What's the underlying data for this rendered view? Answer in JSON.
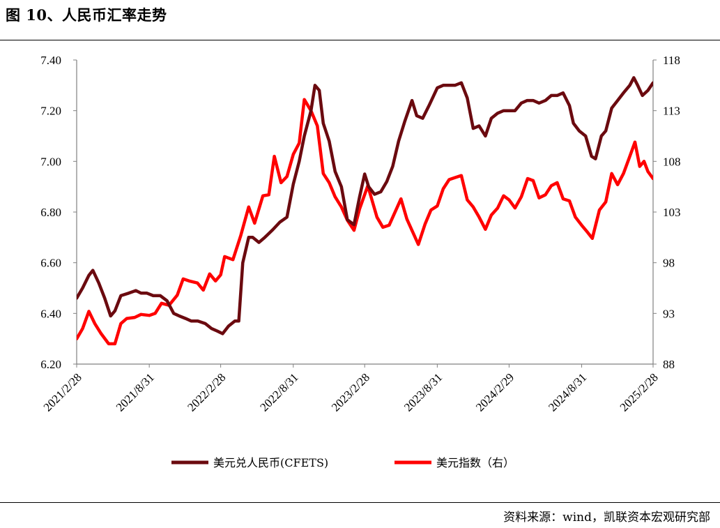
{
  "title": "图 10、人民币汇率走势",
  "source": "资料来源：wind，凯联资本宏观研究部",
  "colors": {
    "cfets": "#6b0a0f",
    "dxy": "#ff0000",
    "axis": "#808080"
  },
  "chart_data": {
    "type": "line",
    "x_tick_labels": [
      "2021/2/28",
      "2021/8/31",
      "2022/2/28",
      "2022/8/31",
      "2023/2/28",
      "2023/8/31",
      "2024/2/29",
      "2024/8/31",
      "2025/2/28"
    ],
    "x_ticks": [
      "2021-02-28",
      "2021-08-31",
      "2022-02-28",
      "2022-08-31",
      "2023-02-28",
      "2023-08-31",
      "2024-02-29",
      "2024-08-31",
      "2025-02-28"
    ],
    "xlim": [
      "2021-02-28",
      "2025-02-28"
    ],
    "y_left": {
      "ylim": [
        6.2,
        7.4
      ],
      "ticks": [
        "6.20",
        "6.40",
        "6.60",
        "6.80",
        "7.00",
        "7.20",
        "7.40"
      ]
    },
    "y_right": {
      "ylim": [
        88,
        118
      ],
      "ticks": [
        "88",
        "93",
        "98",
        "103",
        "108",
        "113",
        "118"
      ]
    },
    "series": [
      {
        "name": "美元兑人民币(CFETS)",
        "axis": "left",
        "color": "#6b0a0f",
        "points": [
          [
            "2021-02-28",
            6.46
          ],
          [
            "2021-03-15",
            6.5
          ],
          [
            "2021-03-31",
            6.55
          ],
          [
            "2021-04-10",
            6.57
          ],
          [
            "2021-04-25",
            6.52
          ],
          [
            "2021-05-10",
            6.46
          ],
          [
            "2021-05-25",
            6.39
          ],
          [
            "2021-06-05",
            6.41
          ],
          [
            "2021-06-20",
            6.47
          ],
          [
            "2021-07-10",
            6.48
          ],
          [
            "2021-07-28",
            6.49
          ],
          [
            "2021-08-10",
            6.48
          ],
          [
            "2021-08-25",
            6.48
          ],
          [
            "2021-09-10",
            6.47
          ],
          [
            "2021-09-28",
            6.47
          ],
          [
            "2021-10-15",
            6.45
          ],
          [
            "2021-11-01",
            6.4
          ],
          [
            "2021-11-15",
            6.39
          ],
          [
            "2021-12-01",
            6.38
          ],
          [
            "2021-12-15",
            6.37
          ],
          [
            "2022-01-01",
            6.37
          ],
          [
            "2022-01-20",
            6.36
          ],
          [
            "2022-02-05",
            6.34
          ],
          [
            "2022-02-20",
            6.33
          ],
          [
            "2022-03-05",
            6.32
          ],
          [
            "2022-03-20",
            6.35
          ],
          [
            "2022-04-05",
            6.37
          ],
          [
            "2022-04-15",
            6.37
          ],
          [
            "2022-04-25",
            6.6
          ],
          [
            "2022-05-10",
            6.7
          ],
          [
            "2022-05-20",
            6.7
          ],
          [
            "2022-06-05",
            6.68
          ],
          [
            "2022-06-20",
            6.7
          ],
          [
            "2022-07-10",
            6.73
          ],
          [
            "2022-07-28",
            6.76
          ],
          [
            "2022-08-15",
            6.78
          ],
          [
            "2022-08-31",
            6.91
          ],
          [
            "2022-09-15",
            7.0
          ],
          [
            "2022-09-28",
            7.1
          ],
          [
            "2022-10-15",
            7.2
          ],
          [
            "2022-10-25",
            7.3
          ],
          [
            "2022-11-05",
            7.28
          ],
          [
            "2022-11-15",
            7.15
          ],
          [
            "2022-11-30",
            7.08
          ],
          [
            "2022-12-15",
            6.96
          ],
          [
            "2022-12-31",
            6.9
          ],
          [
            "2023-01-15",
            6.77
          ],
          [
            "2023-02-01",
            6.75
          ],
          [
            "2023-02-15",
            6.86
          ],
          [
            "2023-02-28",
            6.95
          ],
          [
            "2023-03-10",
            6.9
          ],
          [
            "2023-03-25",
            6.87
          ],
          [
            "2023-04-10",
            6.88
          ],
          [
            "2023-04-25",
            6.92
          ],
          [
            "2023-05-10",
            6.98
          ],
          [
            "2023-05-25",
            7.08
          ],
          [
            "2023-06-10",
            7.16
          ],
          [
            "2023-06-28",
            7.24
          ],
          [
            "2023-07-10",
            7.18
          ],
          [
            "2023-07-25",
            7.17
          ],
          [
            "2023-08-10",
            7.22
          ],
          [
            "2023-08-31",
            7.29
          ],
          [
            "2023-09-15",
            7.3
          ],
          [
            "2023-09-30",
            7.3
          ],
          [
            "2023-10-15",
            7.3
          ],
          [
            "2023-10-31",
            7.31
          ],
          [
            "2023-11-15",
            7.25
          ],
          [
            "2023-11-30",
            7.13
          ],
          [
            "2023-12-15",
            7.14
          ],
          [
            "2023-12-31",
            7.1
          ],
          [
            "2024-01-15",
            7.17
          ],
          [
            "2024-01-31",
            7.19
          ],
          [
            "2024-02-15",
            7.2
          ],
          [
            "2024-02-29",
            7.2
          ],
          [
            "2024-03-15",
            7.2
          ],
          [
            "2024-03-31",
            7.23
          ],
          [
            "2024-04-15",
            7.24
          ],
          [
            "2024-04-30",
            7.24
          ],
          [
            "2024-05-15",
            7.23
          ],
          [
            "2024-05-31",
            7.24
          ],
          [
            "2024-06-15",
            7.26
          ],
          [
            "2024-06-30",
            7.26
          ],
          [
            "2024-07-15",
            7.27
          ],
          [
            "2024-07-31",
            7.22
          ],
          [
            "2024-08-10",
            7.15
          ],
          [
            "2024-08-25",
            7.12
          ],
          [
            "2024-09-10",
            7.1
          ],
          [
            "2024-09-25",
            7.02
          ],
          [
            "2024-10-05",
            7.01
          ],
          [
            "2024-10-20",
            7.1
          ],
          [
            "2024-10-31",
            7.12
          ],
          [
            "2024-11-15",
            7.21
          ],
          [
            "2024-11-30",
            7.24
          ],
          [
            "2024-12-15",
            7.27
          ],
          [
            "2024-12-31",
            7.3
          ],
          [
            "2025-01-10",
            7.33
          ],
          [
            "2025-01-20",
            7.3
          ],
          [
            "2025-02-01",
            7.26
          ],
          [
            "2025-02-15",
            7.28
          ],
          [
            "2025-02-28",
            7.31
          ]
        ]
      },
      {
        "name": "美元指数（右）",
        "axis": "right",
        "color": "#ff0000",
        "points": [
          [
            "2021-02-28",
            90.5
          ],
          [
            "2021-03-15",
            91.5
          ],
          [
            "2021-03-31",
            93.2
          ],
          [
            "2021-04-15",
            92.0
          ],
          [
            "2021-05-01",
            91.0
          ],
          [
            "2021-05-20",
            90.0
          ],
          [
            "2021-06-05",
            90.0
          ],
          [
            "2021-06-20",
            92.0
          ],
          [
            "2021-07-05",
            92.5
          ],
          [
            "2021-07-25",
            92.6
          ],
          [
            "2021-08-10",
            92.9
          ],
          [
            "2021-08-31",
            92.8
          ],
          [
            "2021-09-15",
            93.0
          ],
          [
            "2021-10-01",
            94.0
          ],
          [
            "2021-10-20",
            93.8
          ],
          [
            "2021-11-10",
            94.8
          ],
          [
            "2021-11-25",
            96.4
          ],
          [
            "2021-12-10",
            96.2
          ],
          [
            "2021-12-31",
            96.0
          ],
          [
            "2022-01-15",
            95.3
          ],
          [
            "2022-01-31",
            96.9
          ],
          [
            "2022-02-15",
            96.2
          ],
          [
            "2022-02-28",
            96.8
          ],
          [
            "2022-03-10",
            98.6
          ],
          [
            "2022-03-31",
            98.3
          ],
          [
            "2022-04-20",
            100.7
          ],
          [
            "2022-05-10",
            103.5
          ],
          [
            "2022-05-25",
            101.9
          ],
          [
            "2022-06-15",
            104.6
          ],
          [
            "2022-06-30",
            104.7
          ],
          [
            "2022-07-14",
            108.5
          ],
          [
            "2022-07-31",
            105.9
          ],
          [
            "2022-08-15",
            106.5
          ],
          [
            "2022-08-31",
            108.7
          ],
          [
            "2022-09-15",
            109.8
          ],
          [
            "2022-09-28",
            114.1
          ],
          [
            "2022-10-15",
            113.0
          ],
          [
            "2022-10-31",
            111.5
          ],
          [
            "2022-11-15",
            106.8
          ],
          [
            "2022-11-30",
            105.9
          ],
          [
            "2022-12-15",
            104.5
          ],
          [
            "2022-12-31",
            103.5
          ],
          [
            "2023-01-15",
            102.2
          ],
          [
            "2023-02-01",
            101.2
          ],
          [
            "2023-02-15",
            103.3
          ],
          [
            "2023-03-08",
            105.6
          ],
          [
            "2023-03-31",
            102.5
          ],
          [
            "2023-04-15",
            101.5
          ],
          [
            "2023-05-01",
            101.7
          ],
          [
            "2023-05-31",
            104.3
          ],
          [
            "2023-06-15",
            102.3
          ],
          [
            "2023-07-14",
            99.8
          ],
          [
            "2023-07-31",
            101.8
          ],
          [
            "2023-08-15",
            103.2
          ],
          [
            "2023-08-31",
            103.6
          ],
          [
            "2023-09-15",
            105.3
          ],
          [
            "2023-09-30",
            106.2
          ],
          [
            "2023-10-15",
            106.4
          ],
          [
            "2023-10-31",
            106.6
          ],
          [
            "2023-11-15",
            104.2
          ],
          [
            "2023-11-30",
            103.5
          ],
          [
            "2023-12-15",
            102.5
          ],
          [
            "2023-12-31",
            101.3
          ],
          [
            "2024-01-15",
            102.7
          ],
          [
            "2024-01-31",
            103.4
          ],
          [
            "2024-02-15",
            104.6
          ],
          [
            "2024-02-29",
            104.2
          ],
          [
            "2024-03-15",
            103.4
          ],
          [
            "2024-03-31",
            104.5
          ],
          [
            "2024-04-16",
            106.3
          ],
          [
            "2024-04-30",
            106.1
          ],
          [
            "2024-05-15",
            104.4
          ],
          [
            "2024-05-31",
            104.7
          ],
          [
            "2024-06-15",
            105.6
          ],
          [
            "2024-06-30",
            105.9
          ],
          [
            "2024-07-15",
            104.3
          ],
          [
            "2024-07-31",
            104.1
          ],
          [
            "2024-08-15",
            102.5
          ],
          [
            "2024-08-31",
            101.7
          ],
          [
            "2024-09-15",
            101.0
          ],
          [
            "2024-09-27",
            100.4
          ],
          [
            "2024-10-15",
            103.2
          ],
          [
            "2024-10-31",
            104.0
          ],
          [
            "2024-11-15",
            106.8
          ],
          [
            "2024-11-30",
            105.7
          ],
          [
            "2024-12-15",
            106.8
          ],
          [
            "2024-12-31",
            108.5
          ],
          [
            "2025-01-13",
            109.9
          ],
          [
            "2025-01-25",
            107.5
          ],
          [
            "2025-02-05",
            108.0
          ],
          [
            "2025-02-15",
            107.0
          ],
          [
            "2025-02-28",
            106.3
          ]
        ]
      }
    ],
    "legend": {
      "position": "bottom-center",
      "items": [
        "美元兑人民币(CFETS)",
        "美元指数（右）"
      ]
    }
  }
}
